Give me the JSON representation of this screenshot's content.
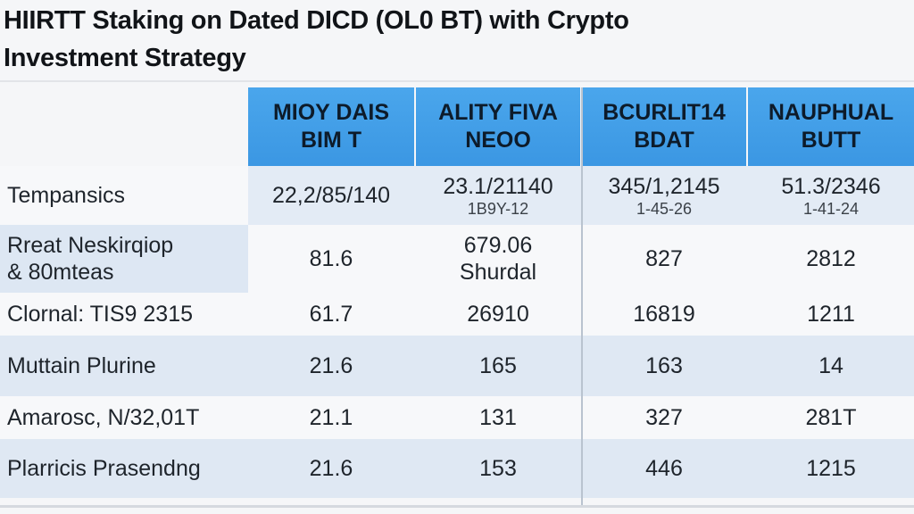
{
  "title": {
    "line1": "HIIRTT Staking on Dated DICD (OL0 BT) with Crypto",
    "line2": "Investment Strategy"
  },
  "table": {
    "headers": [
      {
        "line1": "MIOY DAIS",
        "line2": "BIM T"
      },
      {
        "line1": "ALITY FIVA",
        "line2": "NEOO"
      },
      {
        "line1": "BCURLIT14",
        "line2": "BDAT"
      },
      {
        "line1": "NAUPHUAL",
        "line2": "BUTT"
      }
    ],
    "rows": [
      {
        "label": "Tempansics",
        "cells": [
          {
            "main": "22,2/85/140",
            "sub": ""
          },
          {
            "main": "23.1/21140",
            "sub": "1B9Y-12"
          },
          {
            "main": "345/1,2145",
            "sub": "1-45-26"
          },
          {
            "main": "51.3/2346",
            "sub": "1-41-24"
          }
        ]
      },
      {
        "label": "Rreat Neskirqiop",
        "label2": "& 80mteas",
        "cells": [
          {
            "main": "81.6",
            "sub": ""
          },
          {
            "main": "679.06",
            "sub": "Shurdal"
          },
          {
            "main": "827",
            "sub": ""
          },
          {
            "main": "2812",
            "sub": ""
          }
        ]
      },
      {
        "label": "Clornal:  TIS9 2315",
        "cells": [
          {
            "main": "61.7",
            "sub": ""
          },
          {
            "main": "26910",
            "sub": ""
          },
          {
            "main": "16819",
            "sub": ""
          },
          {
            "main": "1211",
            "sub": ""
          }
        ]
      },
      {
        "label": "Muttain Plurine",
        "cells": [
          {
            "main": "21.6",
            "sub": ""
          },
          {
            "main": "165",
            "sub": ""
          },
          {
            "main": "163",
            "sub": ""
          },
          {
            "main": "14",
            "sub": ""
          }
        ]
      },
      {
        "label": "Amarosc, N/32,01T",
        "cells": [
          {
            "main": "21.1",
            "sub": ""
          },
          {
            "main": "131",
            "sub": ""
          },
          {
            "main": "327",
            "sub": ""
          },
          {
            "main": "281T",
            "sub": ""
          }
        ]
      },
      {
        "label": "Plarricis Prasendng",
        "cells": [
          {
            "main": "21.6",
            "sub": ""
          },
          {
            "main": "153",
            "sub": ""
          },
          {
            "main": "446",
            "sub": ""
          },
          {
            "main": "1215",
            "sub": ""
          }
        ]
      }
    ]
  },
  "colors": {
    "header_blue": "#3b97e3",
    "row_band_blue": "#dfe8f3",
    "background": "#f5f6f8"
  }
}
